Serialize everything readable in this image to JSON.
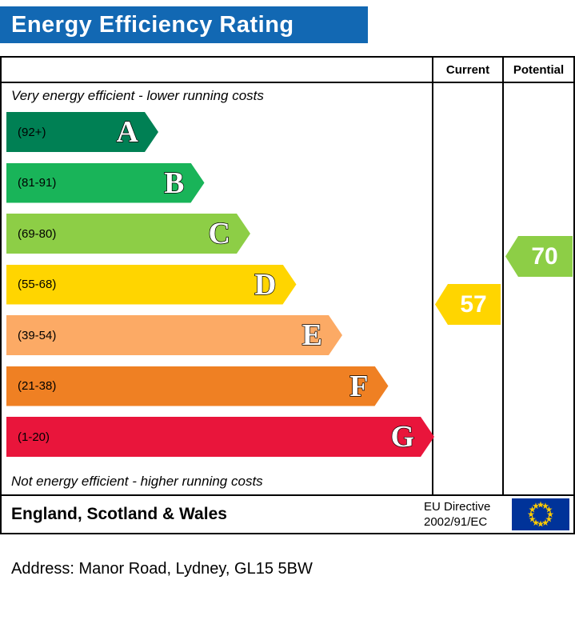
{
  "header": {
    "title": "Energy Efficiency Rating",
    "bar_color": "#1268b3"
  },
  "table": {
    "current_label": "Current",
    "potential_label": "Potential",
    "top_note": "Very energy efficient - lower running costs",
    "bottom_note": "Not energy efficient - higher running costs"
  },
  "bands": [
    {
      "letter": "A",
      "range": "(92+)",
      "color": "#008054"
    },
    {
      "letter": "B",
      "range": "(81-91)",
      "color": "#19b459"
    },
    {
      "letter": "C",
      "range": "(69-80)",
      "color": "#8dce46"
    },
    {
      "letter": "D",
      "range": "(55-68)",
      "color": "#ffd500"
    },
    {
      "letter": "E",
      "range": "(39-54)",
      "color": "#fcaa65"
    },
    {
      "letter": "F",
      "range": "(21-38)",
      "color": "#ef8023"
    },
    {
      "letter": "G",
      "range": "(1-20)",
      "color": "#e9153b"
    }
  ],
  "ratings": {
    "current": {
      "value": "57",
      "color": "#ffd500"
    },
    "potential": {
      "value": "70",
      "color": "#8dce46"
    }
  },
  "footer": {
    "region": "England, Scotland & Wales",
    "directive_line1": "EU Directive",
    "directive_line2": "2002/91/EC"
  },
  "address": "Address: Manor Road, Lydney, GL15 5BW",
  "chart_data": {
    "type": "bar",
    "title": "Energy Efficiency Rating",
    "bands": [
      {
        "letter": "A",
        "range": "92+"
      },
      {
        "letter": "B",
        "range": "81-91"
      },
      {
        "letter": "C",
        "range": "69-80"
      },
      {
        "letter": "D",
        "range": "55-68"
      },
      {
        "letter": "E",
        "range": "39-54"
      },
      {
        "letter": "F",
        "range": "21-38"
      },
      {
        "letter": "G",
        "range": "1-20"
      }
    ],
    "current": 57,
    "current_band": "D",
    "potential": 70,
    "potential_band": "C",
    "region": "England, Scotland & Wales",
    "legend_position": "none",
    "grid": false
  }
}
